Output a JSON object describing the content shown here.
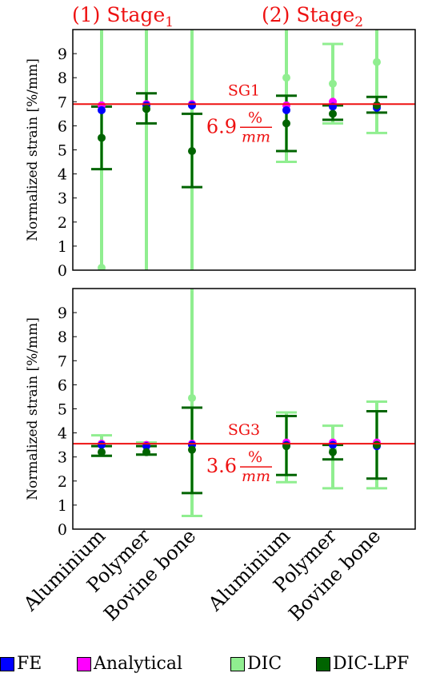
{
  "chart_data": {
    "type": "errorbar",
    "categories": [
      "Aluminium",
      "Polymer",
      "Bovine bone",
      "Aluminium",
      "Polymer",
      "Bovine bone"
    ],
    "stage_labels": [
      {
        "prefix": "(1) Stage",
        "sub": "1"
      },
      {
        "prefix": "(2) Stage",
        "sub": "2"
      }
    ],
    "ylabel": "Normalized strain [%/mm]",
    "yticks": [
      "0",
      "1",
      "2",
      "3",
      "4",
      "5",
      "6",
      "7",
      "8",
      "9"
    ],
    "ylim": [
      0,
      10
    ],
    "legend": [
      {
        "name": "FE",
        "color": "#0000ff"
      },
      {
        "name": "Analytical",
        "color": "#ff00ff"
      },
      {
        "name": "DIC",
        "color": "#90ee90"
      },
      {
        "name": "DIC-LPF",
        "color": "#006400"
      }
    ],
    "panels": [
      {
        "reference": {
          "name": "SG1",
          "value": 6.9,
          "value_text": "6.9",
          "unit_num": "%",
          "unit_den": "mm",
          "color": "#ee1111"
        },
        "FE": [
          6.65,
          6.85,
          6.85,
          6.65,
          6.8,
          6.75
        ],
        "Analytical": [
          6.85,
          6.9,
          6.9,
          6.85,
          7.0,
          6.85
        ],
        "DIC": {
          "values": [
            0.1,
            6.7,
            6.9,
            8.0,
            7.75,
            8.65
          ],
          "lower": [
            0.0,
            0.0,
            0.0,
            4.5,
            6.1,
            5.7
          ],
          "upper": [
            10.0,
            10.0,
            10.0,
            10.0,
            9.4,
            10.0
          ]
        },
        "DIC-LPF": {
          "values": [
            5.5,
            6.7,
            4.95,
            6.1,
            6.5,
            6.85
          ],
          "lower": [
            4.2,
            6.1,
            3.45,
            4.95,
            6.25,
            6.55
          ],
          "upper": [
            6.8,
            7.35,
            6.5,
            7.25,
            6.85,
            7.2
          ]
        }
      },
      {
        "reference": {
          "name": "SG3",
          "value": 3.55,
          "value_text": "3.6",
          "unit_num": "%",
          "unit_den": "mm",
          "color": "#ee1111"
        },
        "FE": [
          3.5,
          3.45,
          3.5,
          3.5,
          3.5,
          3.45
        ],
        "Analytical": [
          3.55,
          3.5,
          3.55,
          3.6,
          3.6,
          3.6
        ],
        "DIC": {
          "values": [
            3.55,
            3.5,
            5.45,
            3.5,
            3.3,
            3.5
          ],
          "lower": [
            3.05,
            3.1,
            0.55,
            1.95,
            1.7,
            1.7
          ],
          "upper": [
            3.9,
            3.6,
            10.0,
            4.85,
            4.3,
            5.3
          ]
        },
        "DIC-LPF": {
          "values": [
            3.2,
            3.2,
            3.3,
            3.45,
            3.2,
            3.5
          ],
          "lower": [
            3.05,
            3.1,
            1.5,
            2.25,
            2.9,
            2.1
          ],
          "upper": [
            3.45,
            3.45,
            5.05,
            4.7,
            3.5,
            4.9
          ]
        }
      }
    ]
  }
}
